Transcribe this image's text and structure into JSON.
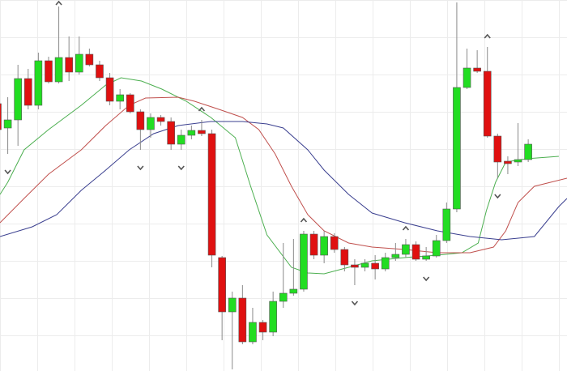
{
  "chart_data": {
    "type": "candlestick",
    "xlim": [
      0.24,
      55.8
    ],
    "ylim": [
      0,
      458
    ],
    "up_color": "#22dd22",
    "down_color": "#e01010",
    "open": [
      330,
      300,
      310,
      361,
      328,
      383,
      357,
      387,
      369,
      391,
      378,
      362,
      333,
      341,
      320,
      298,
      313,
      308,
      280,
      291,
      297,
      293,
      140,
      73,
      90,
      36,
      60,
      48,
      86,
      96,
      101,
      169,
      143,
      166,
      150,
      131,
      128,
      133,
      126,
      140,
      144,
      156,
      138,
      142,
      161,
      200,
      350,
      374,
      370,
      290,
      259,
      258,
      261
    ],
    "high": [
      338,
      338,
      378,
      373,
      393,
      388,
      450,
      413,
      413,
      398,
      383,
      368,
      348,
      343,
      323,
      318,
      316,
      313,
      298,
      303,
      310,
      298,
      142,
      98,
      106,
      78,
      63,
      98,
      158,
      163,
      173,
      173,
      173,
      170,
      153,
      138,
      138,
      143,
      146,
      158,
      163,
      160,
      153,
      168,
      208,
      455,
      398,
      396,
      400,
      293,
      265,
      306,
      286
    ],
    "low": [
      293,
      268,
      278,
      323,
      323,
      355,
      355,
      358,
      366,
      376,
      358,
      328,
      323,
      318,
      273,
      288,
      303,
      273,
      273,
      286,
      290,
      128,
      38,
      2,
      33,
      33,
      38,
      43,
      78,
      93,
      98,
      138,
      133,
      146,
      123,
      106,
      123,
      113,
      123,
      136,
      140,
      136,
      136,
      140,
      158,
      196,
      348,
      368,
      288,
      238,
      243,
      253,
      258
    ],
    "close": [
      298,
      310,
      361,
      328,
      383,
      357,
      387,
      369,
      391,
      378,
      362,
      333,
      341,
      320,
      298,
      313,
      308,
      280,
      291,
      297,
      293,
      143,
      73,
      90,
      36,
      60,
      48,
      86,
      96,
      101,
      169,
      143,
      166,
      150,
      131,
      128,
      133,
      126,
      140,
      144,
      156,
      138,
      142,
      161,
      200,
      350,
      374,
      370,
      290,
      258,
      256,
      261,
      280
    ],
    "up_fractals": [
      6,
      20,
      30,
      40,
      48
    ],
    "down_fractals": [
      1,
      14,
      18,
      35,
      42,
      49
    ],
    "marker_color": "#555555",
    "lines": [
      {
        "color": "#4caf50",
        "x": [
          0.24,
          1.0,
          2.6,
          5.0,
          8.2,
          10.6,
          12.1,
          14.1,
          16.1,
          18.5,
          20.9,
          23.3,
          24.8,
          26.4,
          28.8,
          30.4,
          32.0,
          34.4,
          36.7,
          39.9,
          43.1,
          45.5,
          47.1,
          47.9,
          48.8,
          49.8,
          51.8,
          55.0
        ],
        "values": [
          218,
          233,
          273,
          298,
          328,
          353,
          362,
          358,
          348,
          333,
          313,
          288,
          228,
          168,
          128,
          121,
          120,
          128,
          136,
          140,
          143,
          146,
          158,
          198,
          233,
          258,
          262,
          265
        ]
      },
      {
        "color": "#c0504d",
        "x": [
          0.24,
          2.6,
          5.0,
          8.2,
          10.6,
          12.9,
          14.5,
          17.7,
          19.3,
          21.7,
          24.0,
          25.6,
          27.2,
          28.8,
          30.4,
          32.0,
          34.4,
          36.7,
          39.9,
          43.1,
          46.3,
          48.6,
          49.8,
          51.0,
          52.6,
          55.8
        ],
        "values": [
          183,
          213,
          243,
          273,
          303,
          328,
          337,
          338,
          333,
          323,
          313,
          298,
          268,
          228,
          193,
          173,
          158,
          153,
          150,
          146,
          146,
          153,
          173,
          208,
          228,
          238
        ]
      },
      {
        "color": "#3a3f8f",
        "x": [
          0.24,
          3.4,
          5.8,
          8.2,
          10.6,
          12.9,
          15.3,
          17.7,
          20.9,
          24.0,
          26.4,
          28.0,
          30.4,
          32.0,
          34.4,
          36.7,
          39.9,
          43.1,
          46.3,
          49.4,
          52.6,
          55.0,
          55.8
        ],
        "values": [
          166,
          178,
          193,
          223,
          248,
          273,
          293,
          303,
          308,
          308,
          305,
          300,
          273,
          248,
          218,
          195,
          183,
          173,
          166,
          162,
          166,
          203,
          213
        ]
      }
    ]
  }
}
